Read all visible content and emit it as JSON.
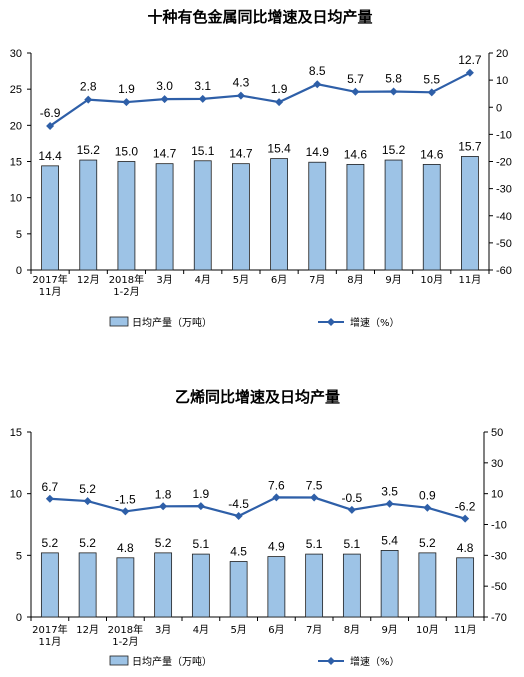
{
  "chart_data": [
    {
      "type": "bar",
      "title": "十种有色金属同比增速及日均产量",
      "categories": [
        "2017年\n11月",
        "12月",
        "2018年\n1-2月",
        "3月",
        "4月",
        "5月",
        "6月",
        "7月",
        "8月",
        "9月",
        "10月",
        "11月"
      ],
      "series": [
        {
          "name": "日均产量（万吨）",
          "type": "bar",
          "axis": "left",
          "values": [
            14.4,
            15.2,
            15.0,
            14.7,
            15.1,
            14.7,
            15.4,
            14.9,
            14.6,
            15.2,
            14.6,
            15.7
          ],
          "labels": [
            "14.4",
            "15.2",
            "15.0",
            "14.7",
            "15.1",
            "14.7",
            "15.4",
            "14.9",
            "14.6",
            "15.2",
            "14.6",
            "15.7"
          ]
        },
        {
          "name": "增速（%）",
          "type": "line",
          "axis": "right",
          "values": [
            -6.9,
            2.8,
            1.9,
            3.0,
            3.1,
            4.3,
            1.9,
            8.5,
            5.7,
            5.8,
            5.5,
            12.7
          ],
          "labels": [
            "-6.9",
            "2.8",
            "1.9",
            "3.0",
            "3.1",
            "4.3",
            "1.9",
            "8.5",
            "5.7",
            "5.8",
            "5.5",
            "12.7"
          ]
        }
      ],
      "ylim_left": [
        0,
        30
      ],
      "yticks_left": [
        "0",
        "5",
        "10",
        "15",
        "20",
        "25",
        "30"
      ],
      "ylim_right": [
        -60,
        20
      ],
      "yticks_right": [
        "-60",
        "-50",
        "-40",
        "-30",
        "-20",
        "-10",
        "0",
        "10",
        "20"
      ],
      "legend_position": "bottom"
    },
    {
      "type": "bar",
      "title": "乙烯同比增速及日均产量",
      "categories": [
        "2017年\n11月",
        "12月",
        "2018年\n1-2月",
        "3月",
        "4月",
        "5月",
        "6月",
        "7月",
        "8月",
        "9月",
        "10月",
        "11月"
      ],
      "series": [
        {
          "name": "日均产量（万吨）",
          "type": "bar",
          "axis": "left",
          "values": [
            5.2,
            5.2,
            4.8,
            5.2,
            5.1,
            4.5,
            4.9,
            5.1,
            5.1,
            5.4,
            5.2,
            4.8
          ],
          "labels": [
            "5.2",
            "5.2",
            "4.8",
            "5.2",
            "5.1",
            "4.5",
            "4.9",
            "5.1",
            "5.1",
            "5.4",
            "5.2",
            "4.8"
          ]
        },
        {
          "name": "增速（%）",
          "type": "line",
          "axis": "right",
          "values": [
            6.7,
            5.2,
            -1.5,
            1.8,
            1.9,
            -4.5,
            7.6,
            7.5,
            -0.5,
            3.5,
            0.9,
            -6.2
          ],
          "labels": [
            "6.7",
            "5.2",
            "-1.5",
            "1.8",
            "1.9",
            "-4.5",
            "7.6",
            "7.5",
            "-0.5",
            "3.5",
            "0.9",
            "-6.2"
          ]
        }
      ],
      "ylim_left": [
        0,
        15
      ],
      "yticks_left": [
        "0",
        "5",
        "10",
        "15"
      ],
      "ylim_right": [
        -70,
        50
      ],
      "yticks_right": [
        "-70",
        "-50",
        "-30",
        "-10",
        "10",
        "30",
        "50"
      ],
      "legend_position": "bottom"
    }
  ],
  "colors": {
    "bar_fill": "#9DC3E6",
    "bar_stroke": "#1F1F1F",
    "line": "#2E5FA8",
    "axis": "#000000"
  }
}
